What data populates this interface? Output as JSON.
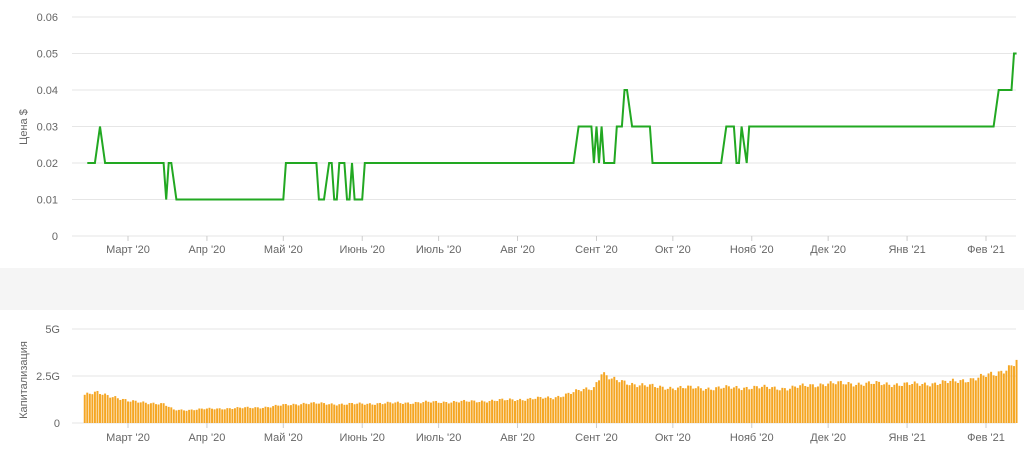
{
  "chart_data": [
    {
      "type": "line",
      "ylabel": "Цена $",
      "xlabel": "",
      "ylim": [
        0,
        0.06
      ],
      "y_ticks": [
        "0",
        "0.01",
        "0.02",
        "0.03",
        "0.04",
        "0.05",
        "0.06"
      ],
      "x_tick_labels": [
        "Март '20",
        "Апр '20",
        "Май '20",
        "Июнь '20",
        "Июль '20",
        "Авг '20",
        "Сент '20",
        "Окт '20",
        "Нояб '20",
        "Дек '20",
        "Янв '21",
        "Фев '21"
      ],
      "grid": true,
      "line_color": "#22a822",
      "series": [
        {
          "x": [
            "2020-02-14",
            "2020-02-17",
            "2020-02-19",
            "2020-02-21",
            "2020-03-15",
            "2020-03-16",
            "2020-03-17",
            "2020-03-18",
            "2020-03-20",
            "2020-03-21",
            "2020-05-01",
            "2020-05-02",
            "2020-05-14",
            "2020-05-15",
            "2020-05-17",
            "2020-05-19",
            "2020-05-20",
            "2020-05-21",
            "2020-05-22",
            "2020-05-23",
            "2020-05-25",
            "2020-05-26",
            "2020-05-27",
            "2020-05-28",
            "2020-05-29",
            "2020-05-30",
            "2020-06-01",
            "2020-06-02",
            "2020-06-03",
            "2020-06-04",
            "2020-08-23",
            "2020-08-25",
            "2020-08-30",
            "2020-08-31",
            "2020-09-01",
            "2020-09-02",
            "2020-09-03",
            "2020-09-04",
            "2020-09-08",
            "2020-09-09",
            "2020-09-11",
            "2020-09-12",
            "2020-09-13",
            "2020-09-15",
            "2020-09-16",
            "2020-09-22",
            "2020-09-23",
            "2020-09-25",
            "2020-10-20",
            "2020-10-22",
            "2020-10-25",
            "2020-10-26",
            "2020-10-27",
            "2020-10-28",
            "2020-10-30",
            "2020-10-31",
            "2020-11-23",
            "2020-11-24",
            "2020-11-27",
            "2020-11-28",
            "2020-11-29",
            "2020-11-30",
            "2020-12-01",
            "2020-12-02",
            "2020-12-03",
            "2020-12-04",
            "2020-12-05",
            "2020-12-06",
            "2021-02-04",
            "2021-02-06",
            "2021-02-11",
            "2021-02-12",
            "2021-02-13"
          ],
          "y": [
            0.02,
            0.02,
            0.03,
            0.02,
            0.02,
            0.01,
            0.02,
            0.02,
            0.01,
            0.01,
            0.01,
            0.02,
            0.02,
            0.01,
            0.01,
            0.02,
            0.02,
            0.01,
            0.01,
            0.02,
            0.02,
            0.01,
            0.01,
            0.02,
            0.01,
            0.01,
            0.01,
            0.02,
            0.02,
            0.02,
            0.02,
            0.03,
            0.03,
            0.02,
            0.03,
            0.02,
            0.03,
            0.02,
            0.02,
            0.03,
            0.03,
            0.04,
            0.04,
            0.03,
            0.03,
            0.03,
            0.02,
            0.02,
            0.02,
            0.03,
            0.03,
            0.02,
            0.02,
            0.03,
            0.02,
            0.03,
            0.03,
            0.03,
            0.03,
            0.03,
            0.03,
            0.03,
            0.03,
            0.03,
            0.03,
            0.03,
            0.03,
            0.03,
            0.03,
            0.04,
            0.04,
            0.05,
            0.05
          ]
        }
      ]
    },
    {
      "type": "bar",
      "ylabel": "Капитализация",
      "xlabel": "",
      "ylim": [
        0,
        5000000000
      ],
      "y_ticks": [
        "0",
        "2.5G",
        "5G"
      ],
      "x_tick_labels": [
        "Март '20",
        "Апр '20",
        "Май '20",
        "Июнь '20",
        "Июль '20",
        "Авг '20",
        "Сент '20",
        "Окт '20",
        "Нояб '20",
        "Дек '20",
        "Янв '21",
        "Фев '21"
      ],
      "grid": true,
      "bar_color": "#f5a623",
      "x_range": [
        "2020-02-13",
        "2021-02-13"
      ],
      "values": [
        {
          "date": "2020-02-13",
          "value": 1500000000
        },
        {
          "date": "2020-02-18",
          "value": 1600000000
        },
        {
          "date": "2020-02-25",
          "value": 1400000000
        },
        {
          "date": "2020-03-01",
          "value": 1150000000
        },
        {
          "date": "2020-03-08",
          "value": 1100000000
        },
        {
          "date": "2020-03-15",
          "value": 1000000000
        },
        {
          "date": "2020-03-19",
          "value": 700000000
        },
        {
          "date": "2020-03-25",
          "value": 700000000
        },
        {
          "date": "2020-04-01",
          "value": 750000000
        },
        {
          "date": "2020-04-15",
          "value": 800000000
        },
        {
          "date": "2020-04-25",
          "value": 850000000
        },
        {
          "date": "2020-05-01",
          "value": 950000000
        },
        {
          "date": "2020-05-10",
          "value": 1050000000
        },
        {
          "date": "2020-05-25",
          "value": 1000000000
        },
        {
          "date": "2020-06-10",
          "value": 1050000000
        },
        {
          "date": "2020-06-25",
          "value": 1100000000
        },
        {
          "date": "2020-07-15",
          "value": 1150000000
        },
        {
          "date": "2020-08-01",
          "value": 1250000000
        },
        {
          "date": "2020-08-15",
          "value": 1350000000
        },
        {
          "date": "2020-08-25",
          "value": 1700000000
        },
        {
          "date": "2020-08-31",
          "value": 1900000000
        },
        {
          "date": "2020-09-03",
          "value": 2700000000
        },
        {
          "date": "2020-09-07",
          "value": 2300000000
        },
        {
          "date": "2020-09-15",
          "value": 2100000000
        },
        {
          "date": "2020-09-25",
          "value": 1900000000
        },
        {
          "date": "2020-10-15",
          "value": 1850000000
        },
        {
          "date": "2020-11-01",
          "value": 1900000000
        },
        {
          "date": "2020-11-15",
          "value": 1850000000
        },
        {
          "date": "2020-11-30",
          "value": 2100000000
        },
        {
          "date": "2020-12-15",
          "value": 2100000000
        },
        {
          "date": "2021-01-05",
          "value": 2050000000
        },
        {
          "date": "2021-01-20",
          "value": 2200000000
        },
        {
          "date": "2021-02-05",
          "value": 2600000000
        },
        {
          "date": "2021-02-10",
          "value": 3000000000
        },
        {
          "date": "2021-02-13",
          "value": 3300000000
        }
      ]
    }
  ]
}
